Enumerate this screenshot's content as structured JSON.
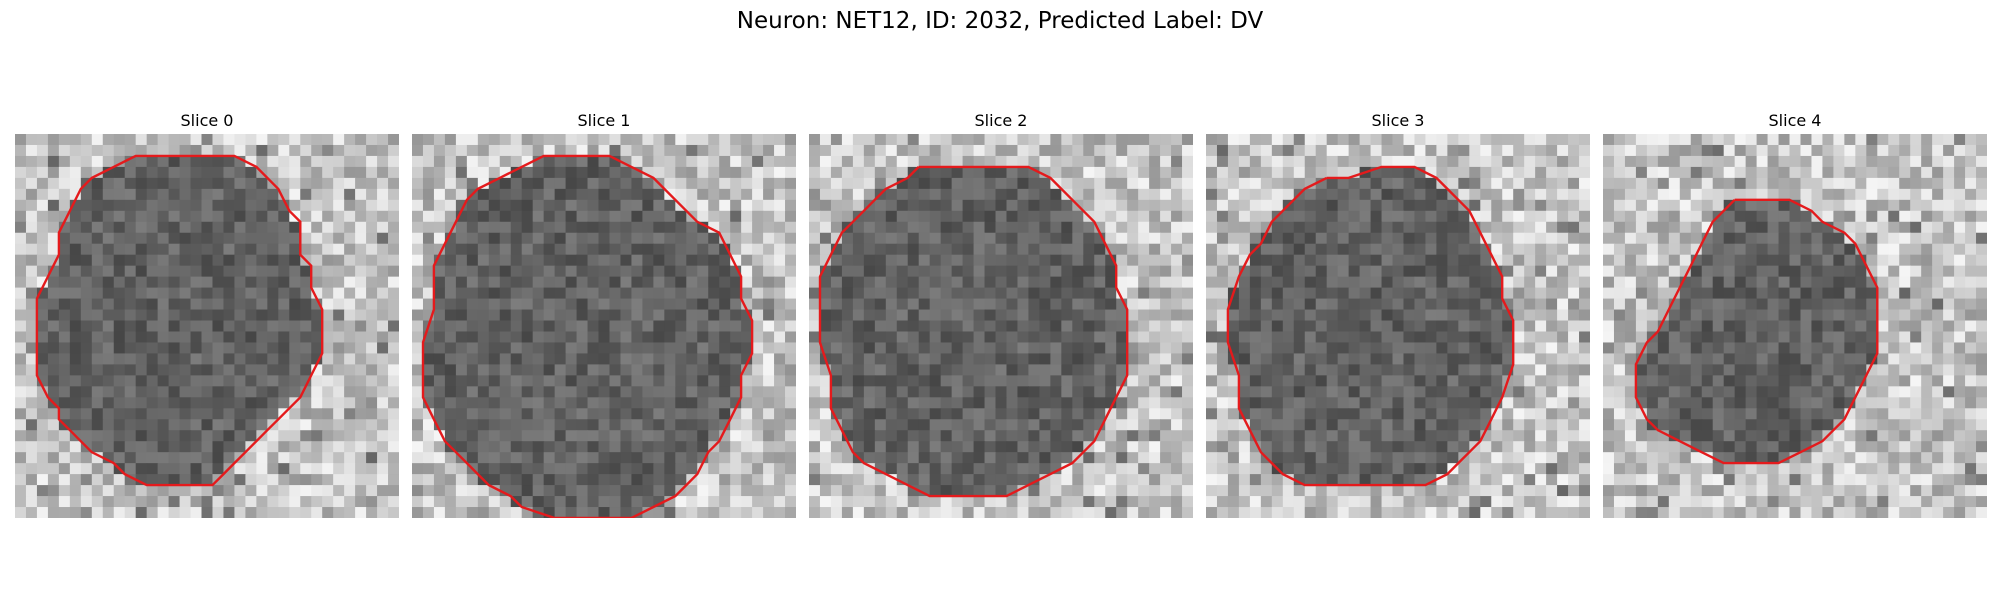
{
  "figure": {
    "title": "Neuron: NET12, ID: 2032, Predicted Label: DV",
    "contour_color": "#e41a1c"
  },
  "panels": [
    {
      "title": "Slice 0",
      "contour": [
        [
          14,
          2
        ],
        [
          20,
          2
        ],
        [
          22,
          3
        ],
        [
          24,
          5
        ],
        [
          25,
          7
        ],
        [
          26,
          8
        ],
        [
          26,
          11
        ],
        [
          27,
          12
        ],
        [
          27,
          14
        ],
        [
          28,
          16
        ],
        [
          28,
          20
        ],
        [
          27,
          22
        ],
        [
          26,
          24
        ],
        [
          25,
          25
        ],
        [
          24,
          26
        ],
        [
          23,
          27
        ],
        [
          22,
          28
        ],
        [
          21,
          29
        ],
        [
          20,
          30
        ],
        [
          19,
          31
        ],
        [
          18,
          32
        ],
        [
          12,
          32
        ],
        [
          10,
          31
        ],
        [
          9,
          30
        ],
        [
          7,
          29
        ],
        [
          6,
          28
        ],
        [
          5,
          27
        ],
        [
          4,
          26
        ],
        [
          4,
          25
        ],
        [
          3,
          24
        ],
        [
          2,
          22
        ],
        [
          2,
          15
        ],
        [
          3,
          13
        ],
        [
          4,
          11
        ],
        [
          4,
          9
        ],
        [
          5,
          7
        ],
        [
          6,
          5
        ],
        [
          7,
          4
        ],
        [
          9,
          3
        ],
        [
          11,
          2
        ]
      ]
    },
    {
      "title": "Slice 1",
      "contour": [
        [
          14,
          2
        ],
        [
          18,
          2
        ],
        [
          20,
          3
        ],
        [
          22,
          4
        ],
        [
          24,
          6
        ],
        [
          26,
          8
        ],
        [
          28,
          9
        ],
        [
          29,
          11
        ],
        [
          30,
          13
        ],
        [
          30,
          15
        ],
        [
          31,
          17
        ],
        [
          31,
          20
        ],
        [
          30,
          22
        ],
        [
          30,
          24
        ],
        [
          29,
          26
        ],
        [
          28,
          28
        ],
        [
          27,
          29
        ],
        [
          26,
          31
        ],
        [
          25,
          32
        ],
        [
          24,
          33
        ],
        [
          22,
          34
        ],
        [
          20,
          35
        ],
        [
          13,
          35
        ],
        [
          10,
          34
        ],
        [
          9,
          33
        ],
        [
          7,
          32
        ],
        [
          6,
          31
        ],
        [
          5,
          30
        ],
        [
          4,
          29
        ],
        [
          3,
          28
        ],
        [
          2,
          26
        ],
        [
          1,
          24
        ],
        [
          1,
          19
        ],
        [
          2,
          16
        ],
        [
          2,
          12
        ],
        [
          3,
          10
        ],
        [
          4,
          8
        ],
        [
          5,
          6
        ],
        [
          6,
          5
        ],
        [
          8,
          4
        ],
        [
          10,
          3
        ],
        [
          12,
          2
        ]
      ]
    },
    {
      "title": "Slice 2",
      "contour": [
        [
          10,
          3
        ],
        [
          20,
          3
        ],
        [
          22,
          4
        ],
        [
          24,
          6
        ],
        [
          25,
          7
        ],
        [
          26,
          8
        ],
        [
          27,
          10
        ],
        [
          28,
          12
        ],
        [
          28,
          14
        ],
        [
          29,
          16
        ],
        [
          29,
          22
        ],
        [
          28,
          24
        ],
        [
          27,
          26
        ],
        [
          26,
          28
        ],
        [
          25,
          29
        ],
        [
          24,
          30
        ],
        [
          22,
          31
        ],
        [
          20,
          32
        ],
        [
          18,
          33
        ],
        [
          11,
          33
        ],
        [
          9,
          32
        ],
        [
          7,
          31
        ],
        [
          5,
          30
        ],
        [
          4,
          29
        ],
        [
          3,
          27
        ],
        [
          2,
          25
        ],
        [
          2,
          22
        ],
        [
          1,
          19
        ],
        [
          1,
          13
        ],
        [
          2,
          11
        ],
        [
          3,
          9
        ],
        [
          4,
          8
        ],
        [
          5,
          7
        ],
        [
          6,
          6
        ],
        [
          7,
          5
        ],
        [
          9,
          4
        ]
      ]
    },
    {
      "title": "Slice 3",
      "contour": [
        [
          11,
          4
        ],
        [
          13,
          4
        ],
        [
          16,
          3
        ],
        [
          19,
          3
        ],
        [
          21,
          4
        ],
        [
          22,
          5
        ],
        [
          23,
          6
        ],
        [
          24,
          7
        ],
        [
          25,
          9
        ],
        [
          26,
          11
        ],
        [
          27,
          13
        ],
        [
          27,
          15
        ],
        [
          28,
          17
        ],
        [
          28,
          21
        ],
        [
          27,
          24
        ],
        [
          26,
          26
        ],
        [
          25,
          28
        ],
        [
          24,
          29
        ],
        [
          23,
          30
        ],
        [
          22,
          31
        ],
        [
          20,
          32
        ],
        [
          18,
          32
        ],
        [
          9,
          32
        ],
        [
          7,
          31
        ],
        [
          6,
          30
        ],
        [
          5,
          29
        ],
        [
          4,
          27
        ],
        [
          3,
          25
        ],
        [
          3,
          22
        ],
        [
          2,
          19
        ],
        [
          2,
          16
        ],
        [
          3,
          13
        ],
        [
          4,
          11
        ],
        [
          5,
          10
        ],
        [
          6,
          8
        ],
        [
          8,
          6
        ],
        [
          9,
          5
        ]
      ]
    },
    {
      "title": "Slice 4",
      "contour": [
        [
          12,
          6
        ],
        [
          17,
          6
        ],
        [
          19,
          7
        ],
        [
          20,
          8
        ],
        [
          22,
          9
        ],
        [
          23,
          10
        ],
        [
          24,
          12
        ],
        [
          25,
          14
        ],
        [
          25,
          17
        ],
        [
          25,
          20
        ],
        [
          24,
          22
        ],
        [
          23,
          24
        ],
        [
          22,
          26
        ],
        [
          21,
          27
        ],
        [
          20,
          28
        ],
        [
          18,
          29
        ],
        [
          16,
          30
        ],
        [
          11,
          30
        ],
        [
          9,
          29
        ],
        [
          7,
          28
        ],
        [
          5,
          27
        ],
        [
          4,
          26
        ],
        [
          3,
          24
        ],
        [
          3,
          21
        ],
        [
          4,
          19
        ],
        [
          5,
          18
        ],
        [
          6,
          16
        ],
        [
          7,
          14
        ],
        [
          8,
          12
        ],
        [
          9,
          10
        ],
        [
          10,
          8
        ]
      ]
    }
  ]
}
